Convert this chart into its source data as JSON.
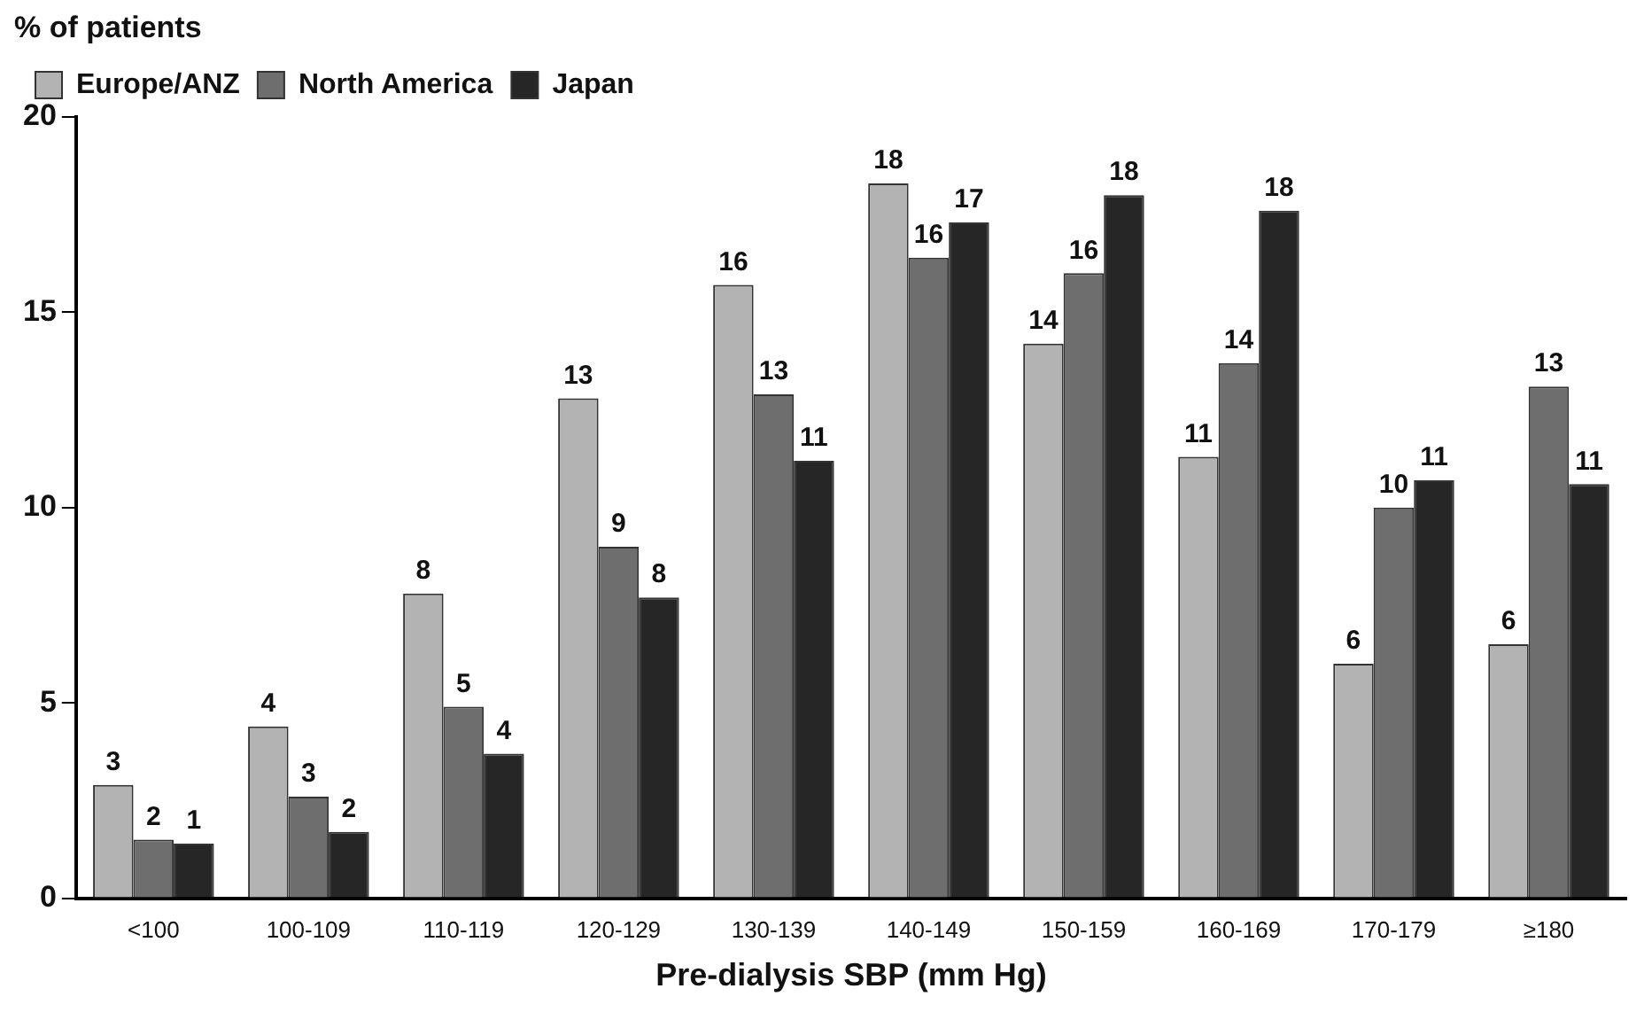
{
  "chart_data": {
    "type": "bar",
    "xlabel": "Pre-dialysis SBP (mm Hg)",
    "ylabel": "% of patients",
    "categories": [
      "<100",
      "100-109",
      "110-119",
      "120-129",
      "130-139",
      "140-149",
      "150-159",
      "160-169",
      "170-179",
      "≥180"
    ],
    "series": [
      {
        "name": "Europe/ANZ",
        "color": "#b3b3b3",
        "values": [
          2.9,
          4.4,
          7.8,
          12.8,
          15.7,
          18.3,
          14.2,
          11.3,
          6.0,
          6.5
        ],
        "value_labels": [
          "3",
          "4",
          "8",
          "13",
          "16",
          "18",
          "14",
          "11",
          "6",
          "6"
        ]
      },
      {
        "name": "North America",
        "color": "#6e6e6e",
        "values": [
          1.5,
          2.6,
          4.9,
          9.0,
          12.9,
          16.4,
          16.0,
          13.7,
          10.0,
          13.1
        ],
        "value_labels": [
          "2",
          "3",
          "5",
          "9",
          "13",
          "16",
          "16",
          "14",
          "10",
          "13"
        ]
      },
      {
        "name": "Japan",
        "color": "#262626",
        "values": [
          1.4,
          1.7,
          3.7,
          7.7,
          11.2,
          17.3,
          18.0,
          17.6,
          10.7,
          10.6
        ],
        "value_labels": [
          "1",
          "2",
          "4",
          "8",
          "11",
          "17",
          "18",
          "18",
          "11",
          "11"
        ]
      }
    ],
    "ylim": [
      0,
      20
    ],
    "yticks": [
      0,
      5,
      10,
      15,
      20
    ],
    "grid": false,
    "legend": "top left"
  }
}
